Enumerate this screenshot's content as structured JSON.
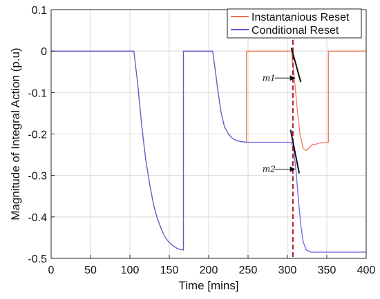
{
  "chart_data": {
    "type": "line",
    "title": "",
    "xlabel": "Time [mins]",
    "ylabel": "Magnitude of Integral Action (p.u)",
    "xlim": [
      0,
      400
    ],
    "ylim": [
      -0.5,
      0.1
    ],
    "xticks": [
      0,
      50,
      100,
      150,
      200,
      250,
      300,
      350,
      400
    ],
    "yticks": [
      0.1,
      0,
      -0.1,
      -0.2,
      -0.3,
      -0.4,
      -0.5
    ],
    "ytick_labels": [
      "0.1",
      "0",
      "-0.1",
      "-0.2",
      "-0.3",
      "-0.4",
      "-0.5"
    ],
    "grid": true,
    "legend_position": "top-right",
    "series": [
      {
        "name": "Instantanious Reset",
        "color": "#ee6b4d",
        "points": [
          [
            0,
            0
          ],
          [
            105,
            0
          ],
          [
            110,
            -0.08
          ],
          [
            115,
            -0.18
          ],
          [
            120,
            -0.26
          ],
          [
            125,
            -0.32
          ],
          [
            130,
            -0.37
          ],
          [
            135,
            -0.405
          ],
          [
            140,
            -0.43
          ],
          [
            145,
            -0.45
          ],
          [
            150,
            -0.462
          ],
          [
            155,
            -0.47
          ],
          [
            160,
            -0.476
          ],
          [
            165,
            -0.479
          ],
          [
            168,
            -0.48
          ],
          [
            168,
            0
          ],
          [
            205,
            0
          ],
          [
            208,
            -0.04
          ],
          [
            212,
            -0.1
          ],
          [
            216,
            -0.15
          ],
          [
            220,
            -0.182
          ],
          [
            225,
            -0.2
          ],
          [
            230,
            -0.21
          ],
          [
            235,
            -0.216
          ],
          [
            240,
            -0.218
          ],
          [
            248,
            -0.22
          ],
          [
            248,
            0
          ],
          [
            305,
            0
          ],
          [
            307,
            -0.03
          ],
          [
            310,
            -0.09
          ],
          [
            313,
            -0.15
          ],
          [
            316,
            -0.2
          ],
          [
            320,
            -0.235
          ],
          [
            324,
            -0.24
          ],
          [
            328,
            -0.232
          ],
          [
            332,
            -0.225
          ],
          [
            336,
            -0.225
          ],
          [
            340,
            -0.222
          ],
          [
            352,
            -0.22
          ],
          [
            352,
            0
          ],
          [
            400,
            0
          ]
        ]
      },
      {
        "name": "Conditional Reset",
        "color": "#5a52e0",
        "points": [
          [
            0,
            0
          ],
          [
            105,
            0
          ],
          [
            110,
            -0.08
          ],
          [
            115,
            -0.18
          ],
          [
            120,
            -0.26
          ],
          [
            125,
            -0.32
          ],
          [
            130,
            -0.37
          ],
          [
            135,
            -0.405
          ],
          [
            140,
            -0.43
          ],
          [
            145,
            -0.45
          ],
          [
            150,
            -0.462
          ],
          [
            155,
            -0.47
          ],
          [
            160,
            -0.476
          ],
          [
            165,
            -0.479
          ],
          [
            168,
            -0.48
          ],
          [
            168,
            0
          ],
          [
            205,
            0
          ],
          [
            208,
            -0.04
          ],
          [
            212,
            -0.1
          ],
          [
            216,
            -0.15
          ],
          [
            220,
            -0.182
          ],
          [
            225,
            -0.2
          ],
          [
            230,
            -0.21
          ],
          [
            235,
            -0.216
          ],
          [
            240,
            -0.218
          ],
          [
            248,
            -0.22
          ],
          [
            305,
            -0.22
          ],
          [
            308,
            -0.24
          ],
          [
            311,
            -0.29
          ],
          [
            314,
            -0.36
          ],
          [
            317,
            -0.42
          ],
          [
            320,
            -0.46
          ],
          [
            324,
            -0.48
          ],
          [
            330,
            -0.485
          ],
          [
            340,
            -0.485
          ],
          [
            400,
            -0.485
          ]
        ]
      }
    ],
    "vertical_marker": {
      "x": 307,
      "color": "#b0203a",
      "style": "dashed"
    },
    "annotations": [
      {
        "text": "m1",
        "x": 305,
        "y": -0.065
      },
      {
        "text": "m2",
        "x": 305,
        "y": -0.285
      }
    ]
  }
}
